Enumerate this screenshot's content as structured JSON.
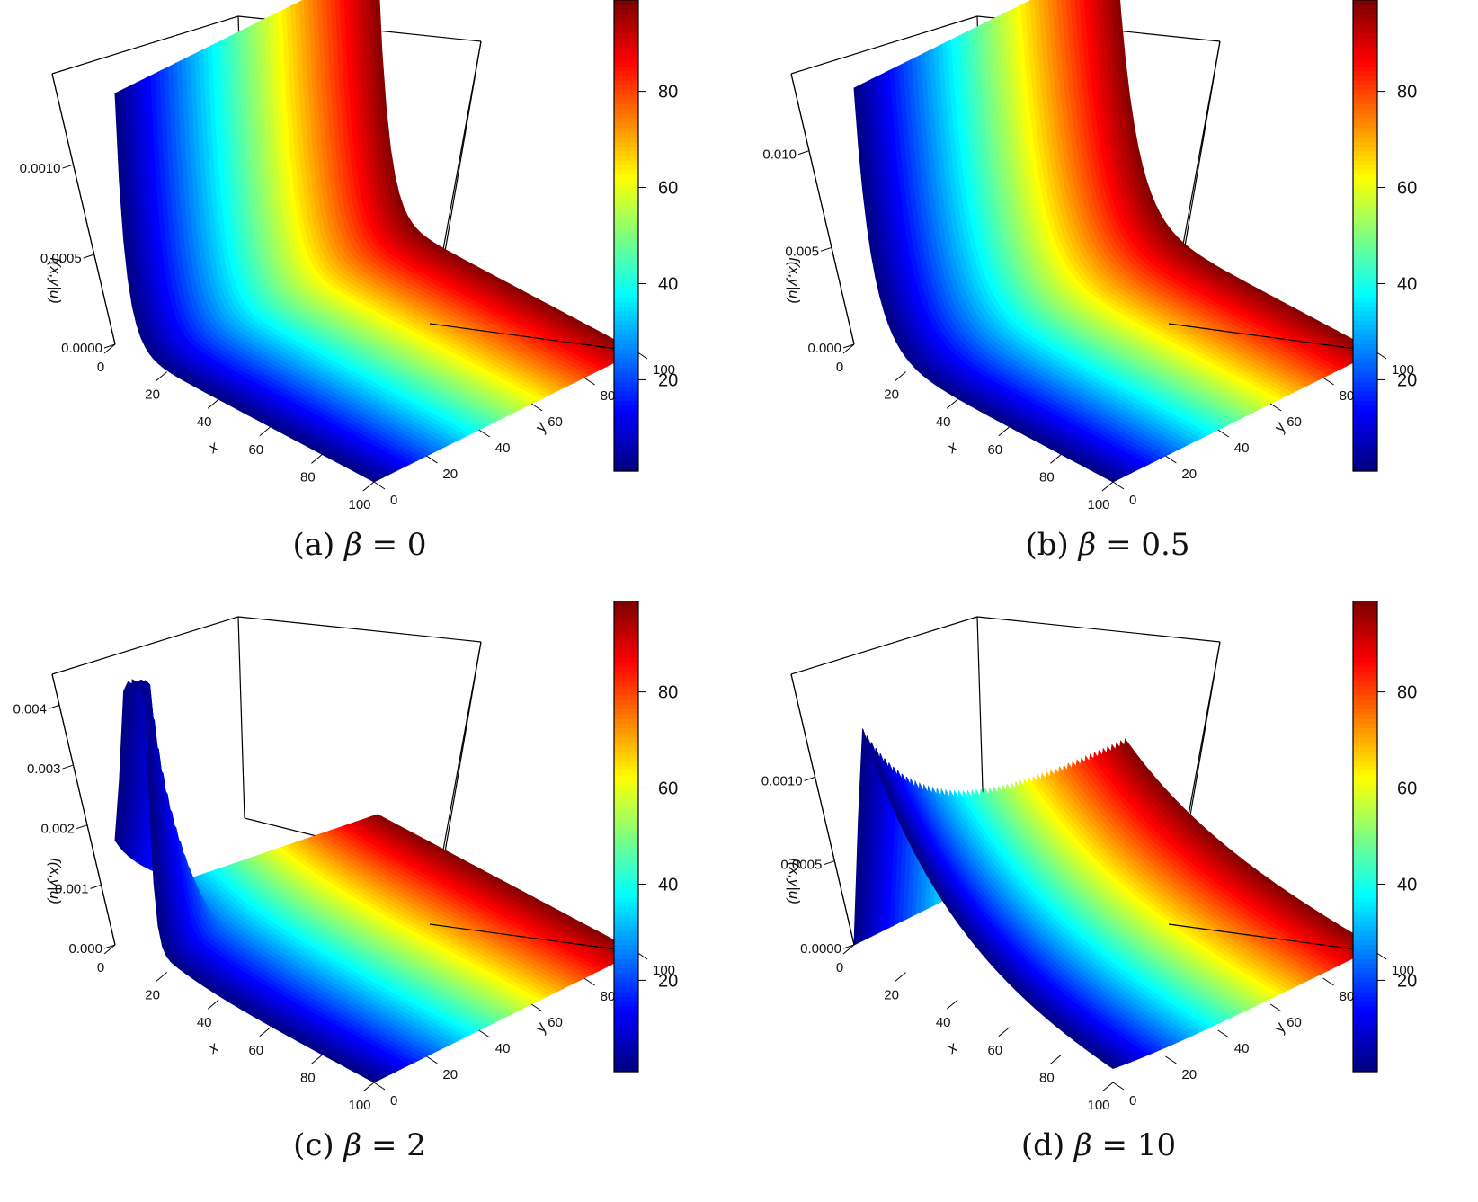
{
  "figure": {
    "panels": [
      {
        "caption_prefix": "(a)",
        "caption_value": "0"
      },
      {
        "caption_prefix": "(b)",
        "caption_value": "0.5"
      },
      {
        "caption_prefix": "(c)",
        "caption_value": "2"
      },
      {
        "caption_prefix": "(d)",
        "caption_value": "10"
      }
    ],
    "caption_symbol": "β",
    "caption_equals": "="
  },
  "chart_data": [
    {
      "type": "surface",
      "title": "",
      "xlabel": "x",
      "ylabel": "y",
      "zlabel": "f(x,y|u)",
      "x_ticks": [
        "0",
        "20",
        "40",
        "60",
        "80",
        "100"
      ],
      "y_ticks": [
        "0",
        "20",
        "40",
        "60",
        "80",
        "100"
      ],
      "z_ticks": [
        "0.0000",
        "0.0005",
        "0.0010"
      ],
      "xlim": [
        0,
        100
      ],
      "ylim": [
        0,
        100
      ],
      "zlim": [
        0,
        0.0014
      ],
      "colorbar": {
        "ticks": [
          "20",
          "40",
          "60",
          "80"
        ],
        "range": [
          1,
          99
        ],
        "palette": "jet"
      },
      "peak": {
        "x": 0,
        "y": 0,
        "z": 0.0013
      },
      "beta": 0
    },
    {
      "type": "surface",
      "title": "",
      "xlabel": "x",
      "ylabel": "y",
      "zlabel": "f(x,y|u)",
      "x_ticks": [
        "0",
        "20",
        "40",
        "60",
        "80",
        "100"
      ],
      "y_ticks": [
        "0",
        "20",
        "40",
        "60",
        "80",
        "100"
      ],
      "z_ticks": [
        "0.000",
        "0.005",
        "0.010"
      ],
      "xlim": [
        0,
        100
      ],
      "ylim": [
        0,
        100
      ],
      "zlim": [
        0,
        0.013
      ],
      "colorbar": {
        "ticks": [
          "20",
          "40",
          "60",
          "80"
        ],
        "range": [
          1,
          99
        ],
        "palette": "jet"
      },
      "peak": {
        "x": 0,
        "y": 0,
        "z": 0.012
      },
      "beta": 0.5
    },
    {
      "type": "surface",
      "title": "",
      "xlabel": "x",
      "ylabel": "y",
      "zlabel": "f(x,y|u)",
      "x_ticks": [
        "0",
        "20",
        "40",
        "60",
        "80",
        "100"
      ],
      "y_ticks": [
        "0",
        "20",
        "40",
        "60",
        "80",
        "100"
      ],
      "z_ticks": [
        "0.000",
        "0.001",
        "0.002",
        "0.003",
        "0.004"
      ],
      "xlim": [
        0,
        100
      ],
      "ylim": [
        0,
        100
      ],
      "zlim": [
        0,
        0.0042
      ],
      "colorbar": {
        "ticks": [
          "20",
          "40",
          "60",
          "80"
        ],
        "range": [
          1,
          99
        ],
        "palette": "jet"
      },
      "peak": {
        "x": 8,
        "y": 0,
        "z": 0.004
      },
      "beta": 2
    },
    {
      "type": "surface",
      "title": "",
      "xlabel": "x",
      "ylabel": "y",
      "zlabel": "f(x,y|u)",
      "x_ticks": [
        "0",
        "20",
        "40",
        "60",
        "80",
        "100"
      ],
      "y_ticks": [
        "0",
        "20",
        "40",
        "60",
        "80",
        "100"
      ],
      "z_ticks": [
        "0.0000",
        "0.0005",
        "0.0010"
      ],
      "xlim": [
        0,
        100
      ],
      "ylim": [
        0,
        100
      ],
      "zlim": [
        0,
        0.0015
      ],
      "colorbar": {
        "ticks": [
          "20",
          "40",
          "60",
          "80"
        ],
        "range": [
          1,
          99
        ],
        "palette": "jet"
      },
      "peak": {
        "x": 5,
        "y": 0,
        "z": 0.00135
      },
      "beta": 10
    }
  ]
}
